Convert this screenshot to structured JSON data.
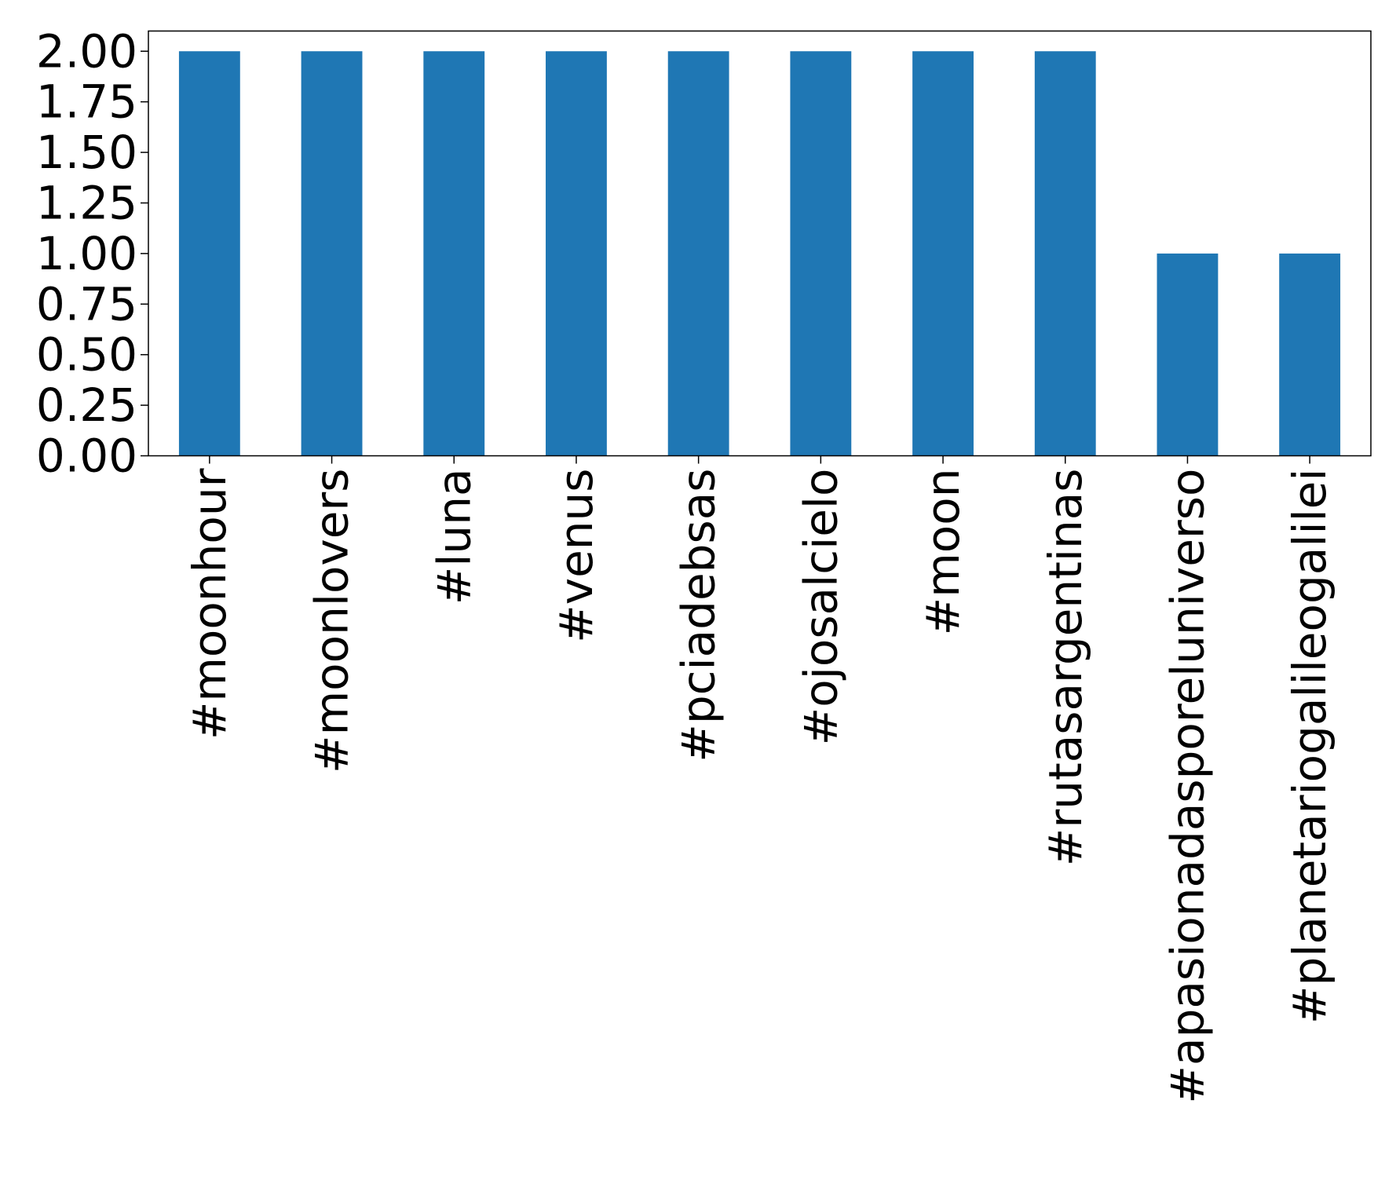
{
  "chart_data": {
    "type": "bar",
    "categories": [
      "#moonhour",
      "#moonlovers",
      "#luna",
      "#venus",
      "#pciadebsas",
      "#ojosalcielo",
      "#moon",
      "#rutasargentinas",
      "#apasionadasporeluniverso",
      "#planetariogalileogalilei"
    ],
    "values": [
      2,
      2,
      2,
      2,
      2,
      2,
      2,
      2,
      1,
      1
    ],
    "title": "",
    "xlabel": "",
    "ylabel": "",
    "ylim": [
      0,
      2.1
    ],
    "yticks": [
      "0.00",
      "0.25",
      "0.50",
      "0.75",
      "1.00",
      "1.25",
      "1.50",
      "1.75",
      "2.00"
    ],
    "grid": false,
    "legend": "none",
    "bar_color": "#1f77b4"
  }
}
